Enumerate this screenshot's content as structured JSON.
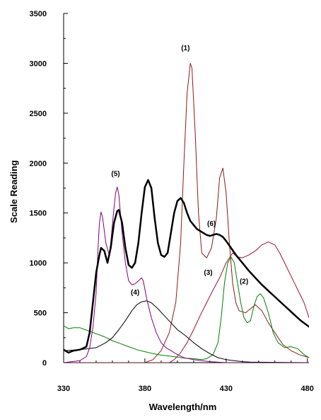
{
  "chart_data": {
    "type": "line",
    "title": "",
    "xlabel": "Wavelength/nm",
    "ylabel": "Scale Reading",
    "xlim": [
      330,
      481
    ],
    "ylim": [
      0,
      3500
    ],
    "x_ticks": [
      330,
      380,
      430,
      480
    ],
    "y_ticks": [
      0,
      500,
      1000,
      1500,
      2000,
      2500,
      3000,
      3500
    ],
    "x_minor_step": 10,
    "y_minor_step": 250,
    "grid": false,
    "legend": "none",
    "series": [
      {
        "name": "(1)",
        "color": "#8b1a1a",
        "stroke_width": 1,
        "points": [
          [
            330,
            0
          ],
          [
            380,
            0
          ],
          [
            385,
            30
          ],
          [
            390,
            120
          ],
          [
            395,
            300
          ],
          [
            399,
            600
          ],
          [
            402,
            1200
          ],
          [
            404,
            2000
          ],
          [
            406,
            2700
          ],
          [
            408,
            3000
          ],
          [
            409,
            2950
          ],
          [
            411,
            2300
          ],
          [
            413,
            1500
          ],
          [
            415,
            1100
          ],
          [
            418,
            1050
          ],
          [
            421,
            1150
          ],
          [
            424,
            1450
          ],
          [
            426,
            1850
          ],
          [
            428,
            1950
          ],
          [
            430,
            1700
          ],
          [
            432,
            1200
          ],
          [
            434,
            800
          ],
          [
            436,
            600
          ],
          [
            438,
            520
          ],
          [
            442,
            500
          ],
          [
            445,
            540
          ],
          [
            448,
            580
          ],
          [
            452,
            520
          ],
          [
            456,
            400
          ],
          [
            460,
            300
          ],
          [
            465,
            180
          ],
          [
            470,
            120
          ],
          [
            475,
            80
          ],
          [
            481,
            50
          ]
        ]
      },
      {
        "name": "(2)",
        "color": "#008000",
        "stroke_width": 1,
        "points": [
          [
            330,
            370
          ],
          [
            333,
            340
          ],
          [
            336,
            350
          ],
          [
            340,
            350
          ],
          [
            345,
            320
          ],
          [
            350,
            290
          ],
          [
            355,
            260
          ],
          [
            360,
            220
          ],
          [
            365,
            190
          ],
          [
            370,
            160
          ],
          [
            375,
            130
          ],
          [
            380,
            110
          ],
          [
            385,
            90
          ],
          [
            390,
            75
          ],
          [
            395,
            65
          ],
          [
            400,
            55
          ],
          [
            405,
            45
          ],
          [
            410,
            40
          ],
          [
            415,
            30
          ],
          [
            418,
            40
          ],
          [
            422,
            80
          ],
          [
            425,
            200
          ],
          [
            427,
            450
          ],
          [
            429,
            800
          ],
          [
            431,
            1000
          ],
          [
            433,
            1060
          ],
          [
            435,
            1000
          ],
          [
            437,
            800
          ],
          [
            439,
            600
          ],
          [
            441,
            450
          ],
          [
            443,
            400
          ],
          [
            445,
            420
          ],
          [
            447,
            560
          ],
          [
            449,
            660
          ],
          [
            451,
            690
          ],
          [
            453,
            650
          ],
          [
            456,
            500
          ],
          [
            459,
            300
          ],
          [
            462,
            200
          ],
          [
            466,
            150
          ],
          [
            470,
            160
          ],
          [
            474,
            140
          ],
          [
            478,
            80
          ],
          [
            481,
            50
          ]
        ]
      },
      {
        "name": "(3)",
        "color": "#a01030",
        "stroke_width": 1,
        "points": [
          [
            330,
            0
          ],
          [
            395,
            0
          ],
          [
            398,
            30
          ],
          [
            402,
            100
          ],
          [
            406,
            200
          ],
          [
            410,
            330
          ],
          [
            414,
            470
          ],
          [
            418,
            600
          ],
          [
            422,
            730
          ],
          [
            426,
            850
          ],
          [
            430,
            1000
          ],
          [
            434,
            1100
          ],
          [
            437,
            1060
          ],
          [
            440,
            1050
          ],
          [
            444,
            1080
          ],
          [
            448,
            1120
          ],
          [
            452,
            1180
          ],
          [
            456,
            1210
          ],
          [
            460,
            1180
          ],
          [
            463,
            1100
          ],
          [
            466,
            1000
          ],
          [
            469,
            900
          ],
          [
            472,
            800
          ],
          [
            475,
            700
          ],
          [
            478,
            600
          ],
          [
            481,
            450
          ]
        ]
      },
      {
        "name": "(4)",
        "color": "#000000",
        "stroke_width": 1,
        "points": [
          [
            330,
            120
          ],
          [
            340,
            130
          ],
          [
            350,
            150
          ],
          [
            356,
            200
          ],
          [
            360,
            250
          ],
          [
            364,
            330
          ],
          [
            368,
            420
          ],
          [
            372,
            520
          ],
          [
            375,
            580
          ],
          [
            378,
            610
          ],
          [
            381,
            620
          ],
          [
            384,
            600
          ],
          [
            388,
            540
          ],
          [
            392,
            470
          ],
          [
            396,
            400
          ],
          [
            400,
            330
          ],
          [
            405,
            270
          ],
          [
            410,
            200
          ],
          [
            415,
            140
          ],
          [
            420,
            90
          ],
          [
            425,
            50
          ],
          [
            430,
            30
          ],
          [
            435,
            20
          ],
          [
            440,
            10
          ],
          [
            445,
            5
          ],
          [
            481,
            0
          ]
        ]
      },
      {
        "name": "(5)",
        "color": "#800080",
        "stroke_width": 1,
        "points": [
          [
            330,
            0
          ],
          [
            340,
            20
          ],
          [
            344,
            60
          ],
          [
            346,
            150
          ],
          [
            348,
            350
          ],
          [
            350,
            700
          ],
          [
            351,
            1100
          ],
          [
            352,
            1400
          ],
          [
            353,
            1510
          ],
          [
            354,
            1450
          ],
          [
            356,
            1200
          ],
          [
            358,
            1080
          ],
          [
            359,
            1200
          ],
          [
            361,
            1550
          ],
          [
            362,
            1700
          ],
          [
            363,
            1760
          ],
          [
            364,
            1680
          ],
          [
            366,
            1300
          ],
          [
            368,
            1000
          ],
          [
            370,
            820
          ],
          [
            372,
            780
          ],
          [
            374,
            790
          ],
          [
            376,
            820
          ],
          [
            378,
            850
          ],
          [
            379,
            820
          ],
          [
            381,
            650
          ],
          [
            384,
            450
          ],
          [
            387,
            300
          ],
          [
            390,
            200
          ],
          [
            393,
            150
          ],
          [
            396,
            120
          ],
          [
            400,
            80
          ],
          [
            404,
            50
          ],
          [
            410,
            30
          ],
          [
            420,
            10
          ],
          [
            430,
            0
          ],
          [
            481,
            0
          ]
        ]
      },
      {
        "name": "(6)",
        "color": "#000000",
        "stroke_width": 2.5,
        "points": [
          [
            330,
            130
          ],
          [
            333,
            100
          ],
          [
            336,
            120
          ],
          [
            340,
            130
          ],
          [
            344,
            160
          ],
          [
            346,
            300
          ],
          [
            348,
            600
          ],
          [
            350,
            900
          ],
          [
            352,
            1080
          ],
          [
            353,
            1150
          ],
          [
            355,
            1120
          ],
          [
            357,
            1000
          ],
          [
            359,
            1150
          ],
          [
            361,
            1400
          ],
          [
            363,
            1520
          ],
          [
            364,
            1530
          ],
          [
            366,
            1400
          ],
          [
            368,
            1150
          ],
          [
            370,
            980
          ],
          [
            372,
            950
          ],
          [
            374,
            1000
          ],
          [
            376,
            1200
          ],
          [
            378,
            1500
          ],
          [
            380,
            1760
          ],
          [
            382,
            1830
          ],
          [
            384,
            1750
          ],
          [
            386,
            1450
          ],
          [
            388,
            1200
          ],
          [
            390,
            1080
          ],
          [
            392,
            1060
          ],
          [
            394,
            1100
          ],
          [
            396,
            1300
          ],
          [
            398,
            1500
          ],
          [
            400,
            1620
          ],
          [
            402,
            1650
          ],
          [
            404,
            1600
          ],
          [
            406,
            1500
          ],
          [
            408,
            1420
          ],
          [
            410,
            1380
          ],
          [
            412,
            1340
          ],
          [
            414,
            1320
          ],
          [
            416,
            1300
          ],
          [
            418,
            1280
          ],
          [
            420,
            1270
          ],
          [
            422,
            1280
          ],
          [
            424,
            1290
          ],
          [
            426,
            1280
          ],
          [
            428,
            1260
          ],
          [
            430,
            1220
          ],
          [
            433,
            1150
          ],
          [
            436,
            1080
          ],
          [
            440,
            1000
          ],
          [
            444,
            920
          ],
          [
            448,
            850
          ],
          [
            452,
            780
          ],
          [
            456,
            720
          ],
          [
            460,
            660
          ],
          [
            464,
            600
          ],
          [
            468,
            540
          ],
          [
            472,
            480
          ],
          [
            476,
            420
          ],
          [
            481,
            360
          ]
        ]
      }
    ],
    "annotations": [
      {
        "text": "(1)",
        "x": 405,
        "y": 3130
      },
      {
        "text": "(5)",
        "x": 362,
        "y": 1870
      },
      {
        "text": "(6)",
        "x": 421,
        "y": 1370
      },
      {
        "text": "(3)",
        "x": 419,
        "y": 880
      },
      {
        "text": "(4)",
        "x": 374,
        "y": 680
      },
      {
        "text": "(2)",
        "x": 441,
        "y": 790
      }
    ]
  }
}
